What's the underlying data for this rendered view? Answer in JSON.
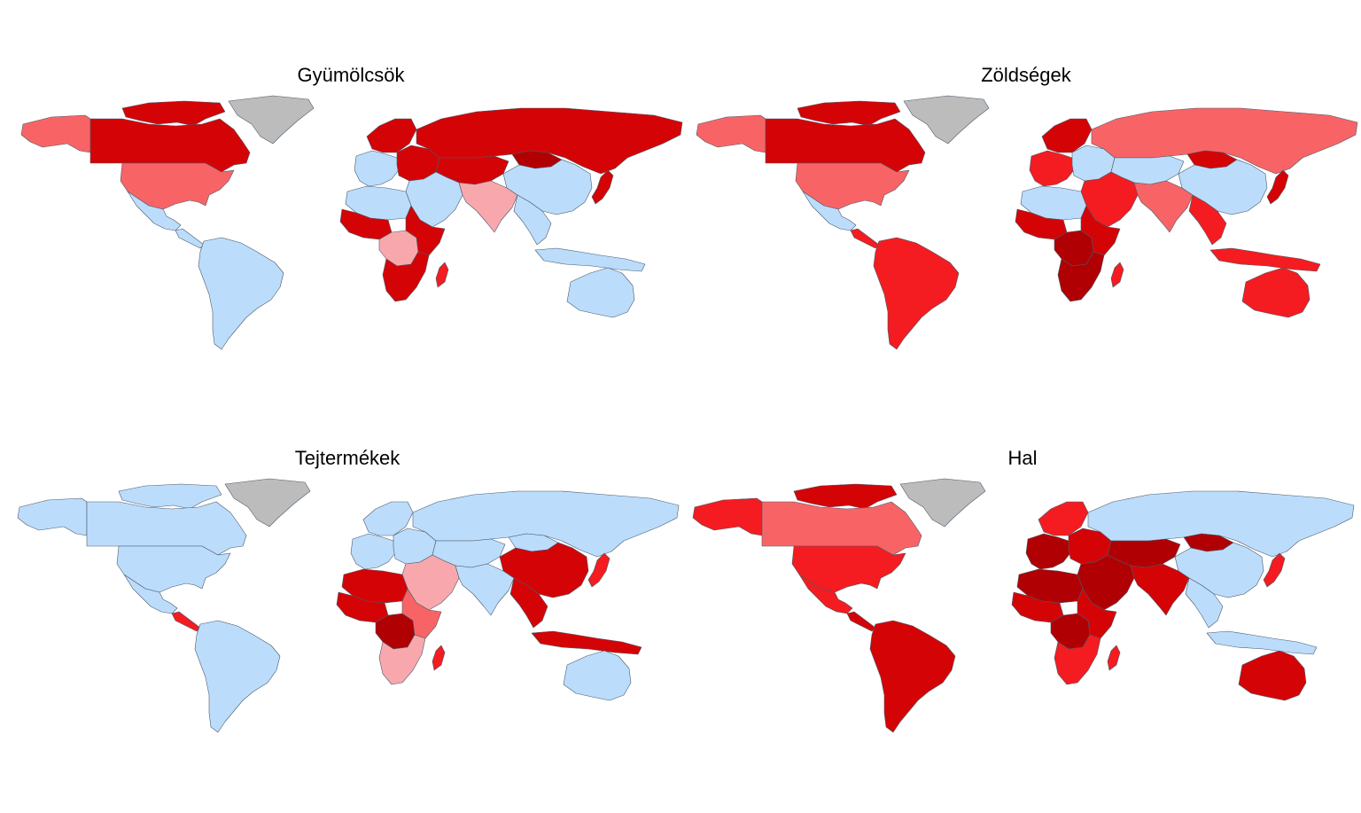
{
  "colors": {
    "none": "#bcdcfc",
    "light": "#f8a8ac",
    "medium": "#f86466",
    "high": "#f41c20",
    "veryhigh": "#d40406",
    "extreme": "#b00004",
    "nodata": "#bcbcbc"
  },
  "panels": [
    {
      "title": "Gyümölcsök",
      "regions": {
        "alaska": "medium",
        "canada": "veryhigh",
        "arctic": "veryhigh",
        "greenland": "nodata",
        "usa": "medium",
        "mexico": "none",
        "centralam": "none",
        "southam": "none",
        "scand": "veryhigh",
        "westeu": "none",
        "easteu": "veryhigh",
        "russia": "veryhigh",
        "centralasia": "veryhigh",
        "mideast": "none",
        "southasia": "light",
        "china": "none",
        "mongolia": "extreme",
        "seasia": "none",
        "japan": "veryhigh",
        "northafrica": "none",
        "westafrica": "veryhigh",
        "centralafrica": "light",
        "eastafrica": "veryhigh",
        "southafrica": "veryhigh",
        "madagascar": "high",
        "indonesia": "none",
        "australia": "none"
      }
    },
    {
      "title": "Zöldségek",
      "regions": {
        "alaska": "medium",
        "canada": "veryhigh",
        "arctic": "veryhigh",
        "greenland": "nodata",
        "usa": "medium",
        "mexico": "none",
        "centralam": "high",
        "southam": "high",
        "scand": "veryhigh",
        "westeu": "high",
        "easteu": "none",
        "russia": "medium",
        "centralasia": "none",
        "mideast": "high",
        "southasia": "medium",
        "china": "none",
        "mongolia": "veryhigh",
        "seasia": "high",
        "japan": "veryhigh",
        "northafrica": "none",
        "westafrica": "veryhigh",
        "centralafrica": "extreme",
        "eastafrica": "veryhigh",
        "southafrica": "extreme",
        "madagascar": "high",
        "indonesia": "high",
        "australia": "high"
      }
    },
    {
      "title": "Tejtermékek",
      "regions": {
        "alaska": "none",
        "canada": "none",
        "arctic": "none",
        "greenland": "nodata",
        "usa": "none",
        "mexico": "none",
        "centralam": "high",
        "southam": "none",
        "scand": "none",
        "westeu": "none",
        "easteu": "none",
        "russia": "none",
        "centralasia": "none",
        "mideast": "light",
        "southasia": "none",
        "china": "veryhigh",
        "mongolia": "none",
        "seasia": "veryhigh",
        "japan": "high",
        "northafrica": "veryhigh",
        "westafrica": "veryhigh",
        "centralafrica": "extreme",
        "eastafrica": "medium",
        "southafrica": "light",
        "madagascar": "high",
        "indonesia": "veryhigh",
        "australia": "none"
      }
    },
    {
      "title": "Hal",
      "regions": {
        "alaska": "high",
        "canada": "medium",
        "arctic": "veryhigh",
        "greenland": "nodata",
        "usa": "high",
        "mexico": "high",
        "centralam": "veryhigh",
        "southam": "veryhigh",
        "scand": "high",
        "westeu": "extreme",
        "easteu": "veryhigh",
        "russia": "none",
        "centralasia": "extreme",
        "mideast": "extreme",
        "southasia": "veryhigh",
        "china": "none",
        "mongolia": "extreme",
        "seasia": "none",
        "japan": "high",
        "northafrica": "extreme",
        "westafrica": "veryhigh",
        "centralafrica": "extreme",
        "eastafrica": "veryhigh",
        "southafrica": "high",
        "madagascar": "high",
        "indonesia": "none",
        "australia": "veryhigh"
      }
    }
  ]
}
